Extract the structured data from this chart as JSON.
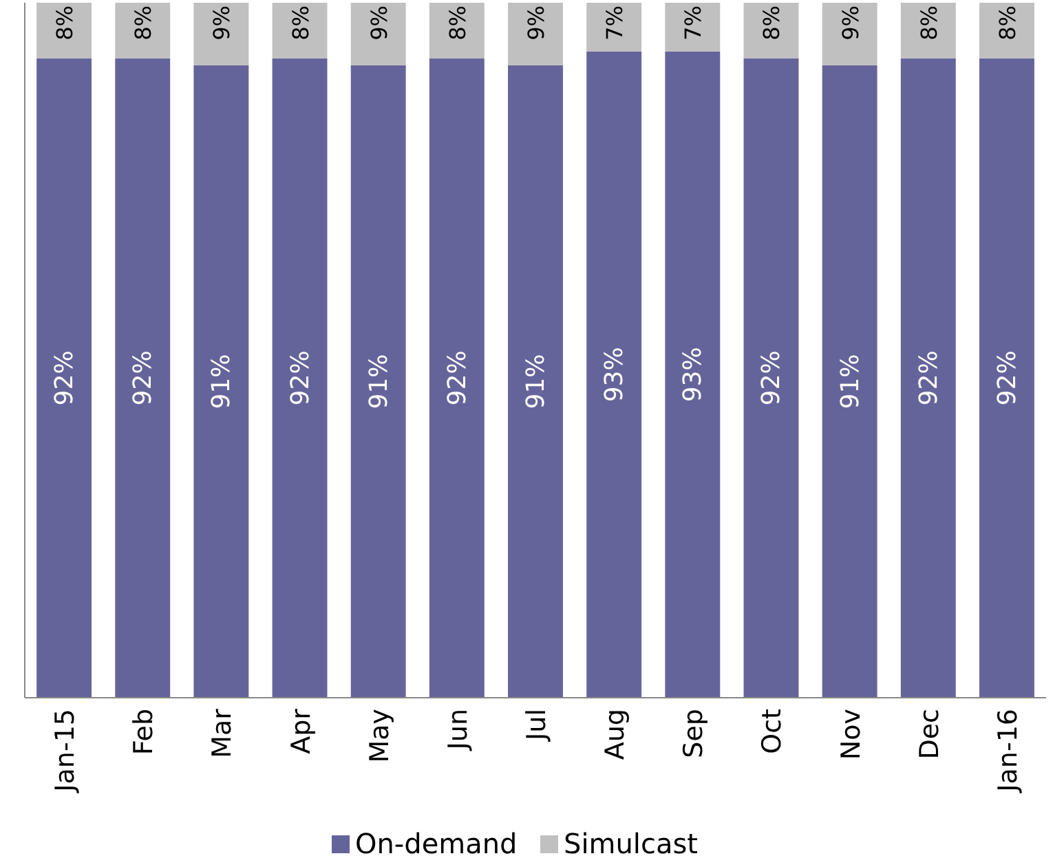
{
  "chart_data": {
    "type": "bar",
    "stacked": true,
    "categories": [
      "Jan-15",
      "Feb",
      "Mar",
      "Apr",
      "May",
      "Jun",
      "Jul",
      "Aug",
      "Sep",
      "Oct",
      "Nov",
      "Dec",
      "Jan-16"
    ],
    "series": [
      {
        "name": "On-demand",
        "color": "#65649a",
        "values": [
          92,
          92,
          91,
          92,
          91,
          92,
          91,
          93,
          93,
          92,
          91,
          92,
          92
        ],
        "value_labels": [
          "92%",
          "92%",
          "91%",
          "92%",
          "91%",
          "92%",
          "91%",
          "93%",
          "93%",
          "92%",
          "91%",
          "92%",
          "92%"
        ]
      },
      {
        "name": "Simulcast",
        "color": "#c0c0c0",
        "values": [
          8,
          8,
          9,
          8,
          9,
          8,
          9,
          7,
          7,
          8,
          9,
          8,
          8
        ],
        "value_labels": [
          "8%",
          "8%",
          "9%",
          "8%",
          "9%",
          "8%",
          "9%",
          "7%",
          "7%",
          "8%",
          "9%",
          "8%",
          "8%"
        ]
      }
    ],
    "legend": "bottom"
  }
}
